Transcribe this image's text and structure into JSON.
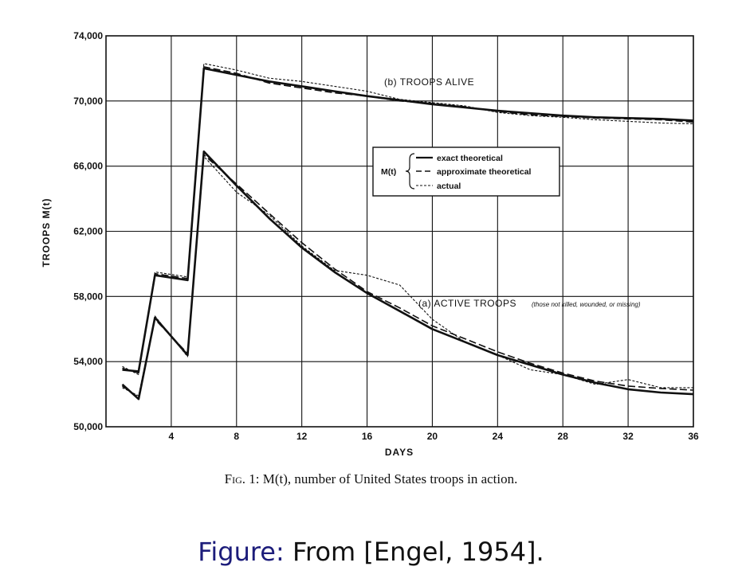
{
  "chart_data": {
    "type": "line",
    "xlabel": "DAYS",
    "ylabel": "TROOPS  M(t)",
    "xlim": [
      0,
      36
    ],
    "ylim": [
      50000,
      74000
    ],
    "x_ticks": [
      4,
      8,
      12,
      16,
      20,
      24,
      28,
      32,
      36
    ],
    "y_ticks": [
      50000,
      54000,
      58000,
      62000,
      66000,
      70000,
      74000
    ],
    "x_tick_labels": [
      "4",
      "8",
      "12",
      "16",
      "20",
      "24",
      "28",
      "32",
      "36"
    ],
    "y_tick_labels": [
      "50,000",
      "54,000",
      "58,000",
      "62,000",
      "66,000",
      "70,000",
      "74,000"
    ],
    "grid": true,
    "annotations": {
      "troops_alive": "(b) TROOPS  ALIVE",
      "active_troops": "(a) ACTIVE  TROOPS",
      "active_note": "(those not killed, wounded, or missing)"
    },
    "legend": {
      "prefix": "M(t)",
      "position": "center-right",
      "items": [
        "exact theoretical",
        "approximate theoretical",
        "actual"
      ]
    },
    "series": [
      {
        "name": "exact theoretical",
        "group": "(b) TROOPS ALIVE",
        "x": [
          1,
          2,
          3,
          5,
          6,
          8,
          10,
          12,
          14,
          16,
          18,
          20,
          22,
          24,
          26,
          28,
          30,
          32,
          34,
          36
        ],
        "y": [
          53500,
          53400,
          59300,
          59000,
          72000,
          71600,
          71200,
          70900,
          70600,
          70300,
          70050,
          69800,
          69600,
          69400,
          69250,
          69100,
          69000,
          68950,
          68900,
          68800
        ]
      },
      {
        "name": "approximate theoretical",
        "group": "(b) TROOPS ALIVE",
        "x": [
          1,
          2,
          3,
          5,
          6,
          8,
          10,
          12,
          14,
          16,
          18,
          20,
          22,
          24,
          26,
          28,
          30,
          32,
          34,
          36
        ],
        "y": [
          53600,
          53300,
          59400,
          59100,
          72100,
          71700,
          71100,
          70800,
          70500,
          70300,
          70000,
          69850,
          69650,
          69350,
          69150,
          69050,
          68950,
          68900,
          68850,
          68700
        ]
      },
      {
        "name": "actual",
        "group": "(b) TROOPS ALIVE",
        "x": [
          1,
          2,
          3,
          5,
          6,
          8,
          10,
          12,
          14,
          16,
          18,
          20,
          22,
          24,
          26,
          28,
          30,
          32,
          34,
          36
        ],
        "y": [
          53700,
          53200,
          59500,
          59200,
          72300,
          71900,
          71400,
          71200,
          70900,
          70600,
          70100,
          69900,
          69700,
          69300,
          69100,
          69000,
          68850,
          68750,
          68650,
          68600
        ]
      },
      {
        "name": "exact theoretical",
        "group": "(a) ACTIVE TROOPS",
        "x": [
          1,
          2,
          3,
          5,
          6,
          8,
          10,
          12,
          14,
          16,
          18,
          20,
          22,
          24,
          26,
          28,
          30,
          32,
          34,
          36
        ],
        "y": [
          52600,
          51700,
          56700,
          54400,
          66900,
          64800,
          62800,
          61000,
          59500,
          58200,
          57100,
          56000,
          55200,
          54400,
          53800,
          53200,
          52700,
          52300,
          52100,
          52000
        ]
      },
      {
        "name": "approximate theoretical",
        "group": "(a) ACTIVE TROOPS",
        "x": [
          1,
          2,
          3,
          5,
          6,
          8,
          10,
          12,
          14,
          16,
          18,
          20,
          22,
          24,
          26,
          28,
          30,
          32,
          34,
          36
        ],
        "y": [
          52500,
          51800,
          56600,
          54500,
          66700,
          64900,
          63100,
          61300,
          59700,
          58300,
          57300,
          56200,
          55400,
          54600,
          53900,
          53300,
          52800,
          52500,
          52350,
          52250
        ]
      },
      {
        "name": "actual",
        "group": "(a) ACTIVE TROOPS",
        "x": [
          1,
          2,
          3,
          5,
          6,
          8,
          10,
          12,
          14,
          16,
          18,
          20,
          22,
          24,
          26,
          28,
          30,
          32,
          34,
          36
        ],
        "y": [
          52400,
          51900,
          56800,
          54300,
          66600,
          64400,
          63000,
          61100,
          59600,
          59300,
          58700,
          56600,
          55200,
          54400,
          53500,
          53200,
          52600,
          52900,
          52400,
          52400
        ]
      }
    ]
  },
  "caption": {
    "fig_label": "Fig. 1:",
    "text": "M(t), number of United States troops in action."
  },
  "footer": {
    "label": "Figure:",
    "text": "From [Engel, 1954]."
  }
}
